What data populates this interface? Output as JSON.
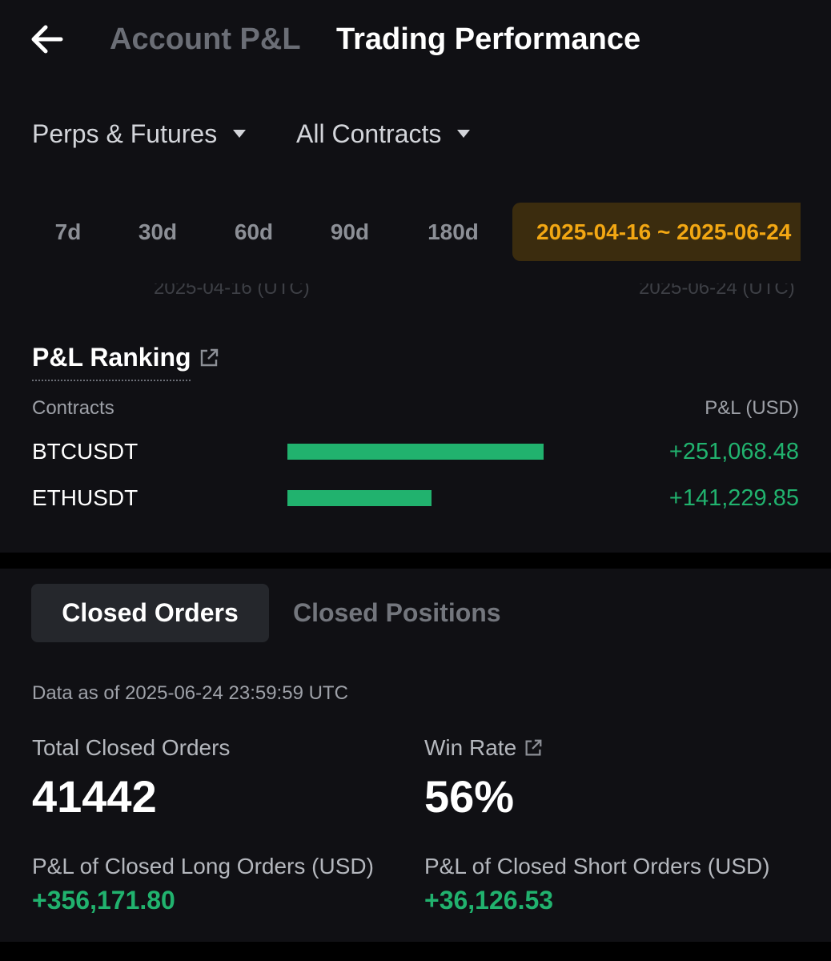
{
  "header": {
    "back_icon": "arrow-left-icon",
    "tabs": [
      {
        "label": "Account P&L",
        "active": false
      },
      {
        "label": "Trading Performance",
        "active": true
      }
    ]
  },
  "filters": {
    "product": "Perps & Futures",
    "contract": "All Contracts"
  },
  "periods": {
    "items": [
      "7d",
      "30d",
      "60d",
      "90d",
      "180d"
    ],
    "custom_range": "2025-04-16 ~ 2025-06-24",
    "start_hint": "2025-04-16 (UTC)",
    "end_hint": "2025-06-24 (UTC)"
  },
  "ranking": {
    "title": "P&L Ranking",
    "col_contracts": "Contracts",
    "col_pnl": "P&L (USD)",
    "rows": [
      {
        "contract": "BTCUSDT",
        "pnl": "+251,068.48",
        "pnl_value": 251068.48
      },
      {
        "contract": "ETHUSDT",
        "pnl": "+141,229.85",
        "pnl_value": 141229.85
      }
    ]
  },
  "orders": {
    "tabs": [
      {
        "label": "Closed Orders",
        "active": true
      },
      {
        "label": "Closed Positions",
        "active": false
      }
    ],
    "data_as_of": "Data as of 2025-06-24 23:59:59 UTC",
    "total_label": "Total Closed Orders",
    "total_value": "41442",
    "win_label": "Win Rate",
    "win_value": "56%",
    "long_label": "P&L of Closed Long Orders (USD)",
    "long_value": "+356,171.80",
    "short_label": "P&L of Closed Short Orders (USD)",
    "short_value": "+36,126.53"
  },
  "colors": {
    "positive": "#21b26e",
    "accent": "#f2a713",
    "background": "#101014"
  }
}
